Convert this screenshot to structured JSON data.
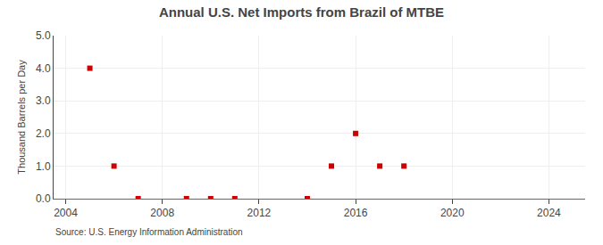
{
  "chart_data": {
    "type": "scatter",
    "title": "Annual U.S. Net Imports from Brazil of MTBE",
    "ylabel": "Thousand Barrels per Day",
    "annotations": [
      "Source: U.S. Energy Information Administration"
    ],
    "x": [
      2005,
      2006,
      2007,
      2009,
      2010,
      2011,
      2014,
      2015,
      2016,
      2017,
      2018
    ],
    "values": [
      4.0,
      1.0,
      0.0,
      0.0,
      0.0,
      0.0,
      0.0,
      1.0,
      2.0,
      1.0,
      1.0
    ],
    "color": "#cc0000",
    "marker": "square",
    "xlim": [
      2003.5,
      2025.5
    ],
    "xticks": [
      2004,
      2008,
      2012,
      2016,
      2020,
      2024
    ],
    "ylim": [
      0.0,
      5.0
    ],
    "yticks": [
      {
        "value": 0.0,
        "label": "0.0"
      },
      {
        "value": 1.0,
        "label": "1.0"
      },
      {
        "value": 2.0,
        "label": "2.0"
      },
      {
        "value": 3.0,
        "label": "3.0"
      },
      {
        "value": 4.0,
        "label": "4.0"
      },
      {
        "value": 5.0,
        "label": "5.0"
      }
    ],
    "grid": true
  }
}
